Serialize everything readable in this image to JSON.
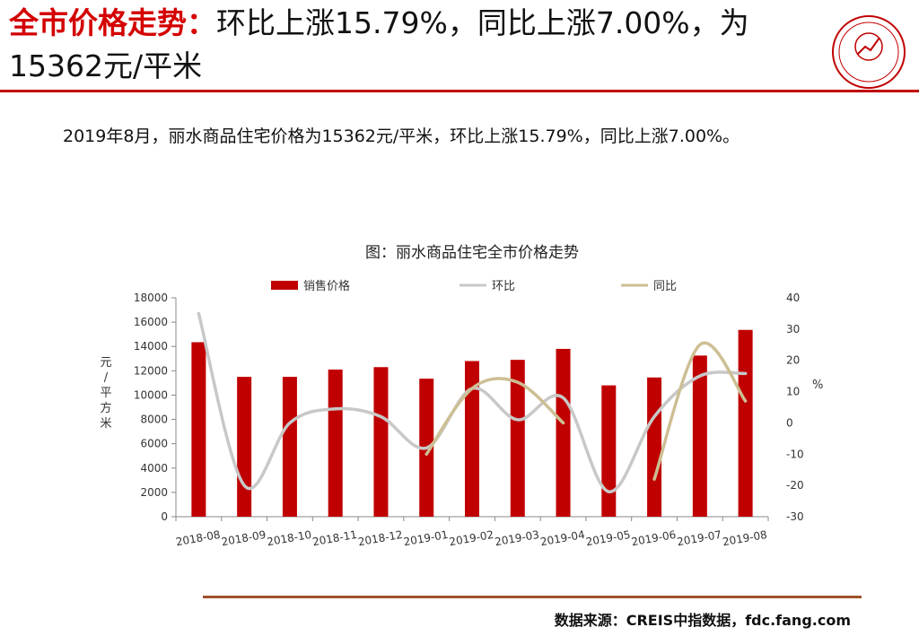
{
  "header": {
    "title_highlight": "全市价格走势：",
    "title_rest": "环比上涨15.79%，同比上涨7.00%，为15362元/平米",
    "logo_name": "logo-seal"
  },
  "summary": "2019年8月，丽水商品住宅价格为15362元/平米，环比上涨15.79%，同比上涨7.00%。",
  "source": "数据来源：CREIS中指数据，fdc.fang.com",
  "colors": {
    "bar": "#c00000",
    "mom": "#c8c8c8",
    "yoy": "#cdbf94",
    "accent": "#d40000"
  },
  "chart_data": {
    "type": "bar",
    "title": "图：丽水商品住宅全市价格走势",
    "categories": [
      "2018-08",
      "2018-09",
      "2018-10",
      "2018-11",
      "2018-12",
      "2019-01",
      "2019-02",
      "2019-03",
      "2019-04",
      "2019-05",
      "2019-06",
      "2019-07",
      "2019-08"
    ],
    "ylabel": "元/平方米",
    "y2label": "%",
    "ylim": [
      0,
      18000
    ],
    "y2lim": [
      -30,
      40
    ],
    "yticks": [
      "0",
      "2000",
      "4000",
      "6000",
      "8000",
      "10000",
      "12000",
      "14000",
      "16000",
      "18000"
    ],
    "y2ticks": [
      "-30",
      "-20",
      "-10",
      "0",
      "10",
      "20",
      "30",
      "40"
    ],
    "legend_position": "top",
    "grid": false,
    "series": [
      {
        "name": "销售价格",
        "type": "bar",
        "axis": "left",
        "values": [
          14350,
          11500,
          11500,
          12100,
          12300,
          11350,
          12800,
          12900,
          13800,
          10800,
          11450,
          13250,
          15362
        ]
      },
      {
        "name": "环比",
        "type": "line",
        "axis": "right",
        "values": [
          35,
          -20,
          0,
          4.5,
          2,
          -8,
          11,
          1,
          8,
          -22,
          2,
          15,
          15.79
        ]
      },
      {
        "name": "同比",
        "type": "line",
        "axis": "right",
        "values": [
          null,
          null,
          null,
          null,
          null,
          -10,
          11,
          13,
          0,
          null,
          -18,
          25,
          7
        ]
      }
    ]
  }
}
